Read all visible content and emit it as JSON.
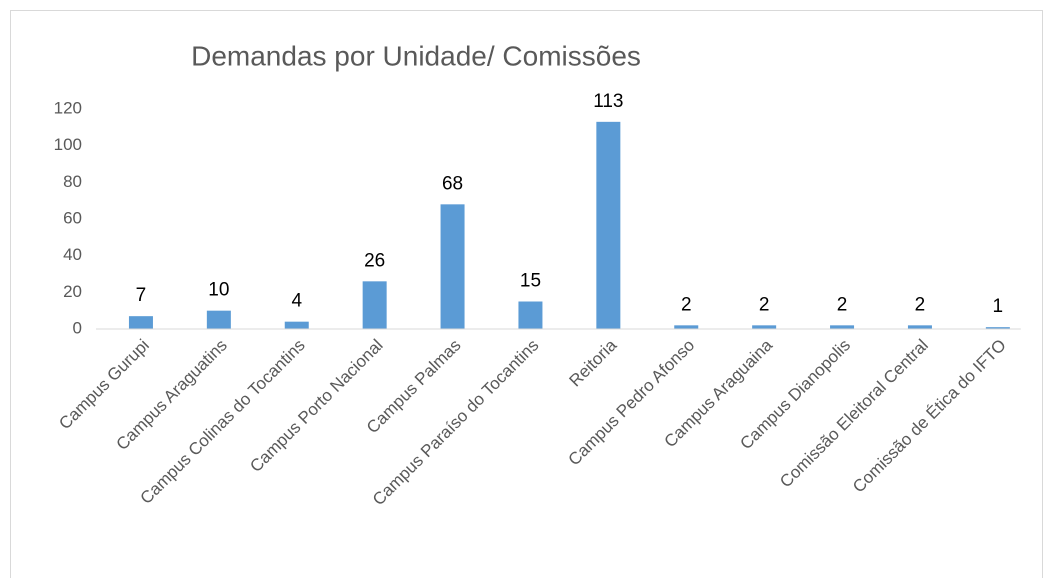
{
  "chart_data": {
    "type": "bar",
    "title": "Demandas por Unidade/ Comissões",
    "categories": [
      "Campus Gurupi",
      "Campus Araguatins",
      "Campus Colinas do Tocantins",
      "Campus Porto Nacional",
      "Campus Palmas",
      "Campus Paraíso do Tocantins",
      "Reitoria",
      "Campus Pedro Afonso",
      "Campus Araguaina",
      "Campus Dianopolis",
      "Comissão Eleitoral Central",
      "Comissão de Ética do IFTO"
    ],
    "values": [
      7,
      10,
      4,
      26,
      68,
      15,
      113,
      2,
      2,
      2,
      2,
      1
    ],
    "color": "#5b9bd5",
    "ylim": [
      0,
      120
    ],
    "yticks": [
      0,
      20,
      40,
      60,
      80,
      100,
      120
    ],
    "grid": false
  }
}
